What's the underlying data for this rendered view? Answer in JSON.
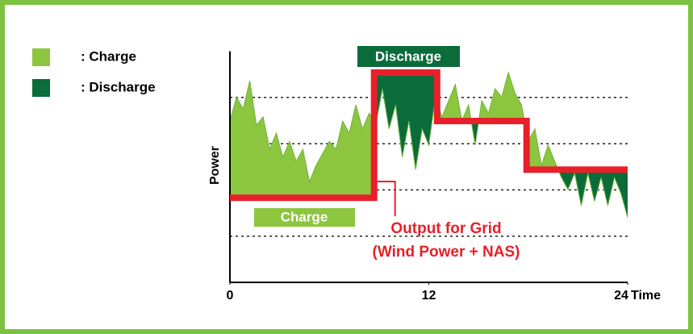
{
  "legend": [
    {
      "label": ": Charge",
      "color": "#8cc63f"
    },
    {
      "label": ": Discharge",
      "color": "#0b6b3a"
    }
  ],
  "chart_data": {
    "type": "line",
    "x_label": "Time",
    "y_label": "Power",
    "xlim": [
      0,
      24
    ],
    "xticks": [
      0,
      12,
      24
    ],
    "ylim": [
      0,
      5
    ],
    "grid_lines": [
      1,
      2,
      3,
      4
    ],
    "charge_label": "Charge",
    "discharge_label": "Discharge",
    "output_label": [
      "Output for Grid",
      "(Wind Power + NAS)"
    ],
    "wind": {
      "color": "#8cc63f",
      "x": [
        0,
        0.4,
        0.8,
        1.2,
        1.6,
        2,
        2.4,
        2.8,
        3.2,
        3.6,
        4,
        4.4,
        4.8,
        5.2,
        5.6,
        6,
        6.4,
        6.8,
        7.2,
        7.6,
        8,
        8.4,
        8.8,
        9.2,
        9.6,
        10,
        10.4,
        10.8,
        11.2,
        11.6,
        12,
        12.4,
        12.8,
        13.2,
        13.6,
        14,
        14.4,
        14.8,
        15.2,
        15.6,
        16,
        16.4,
        16.8,
        17.2,
        17.6,
        18,
        18.4,
        18.8,
        19.2,
        19.6,
        20,
        20.4,
        20.8,
        21.2,
        21.6,
        22,
        22.4,
        22.8,
        23.2,
        23.6,
        24
      ],
      "values": [
        3.49,
        4.01,
        3.75,
        4.36,
        3.4,
        3.58,
        2.88,
        3.23,
        2.71,
        3.05,
        2.62,
        2.88,
        2.18,
        2.53,
        2.79,
        3.05,
        2.88,
        3.49,
        3.23,
        3.84,
        3.32,
        3.66,
        3.4,
        4.19,
        3.32,
        3.84,
        2.71,
        3.49,
        2.44,
        3.32,
        2.97,
        4.01,
        3.58,
        3.93,
        4.28,
        3.49,
        3.84,
        2.97,
        3.93,
        3.66,
        4.19,
        4.01,
        4.54,
        4.1,
        3.84,
        3.05,
        3.32,
        2.53,
        2.97,
        2.62,
        2.27,
        2.01,
        2.36,
        1.66,
        2.36,
        1.75,
        2.27,
        1.66,
        2.27,
        1.92,
        1.4
      ]
    },
    "output": {
      "color": "#e8202a",
      "x": [
        0,
        8.7,
        8.7,
        12.5,
        12.5,
        17.9,
        17.9,
        24
      ],
      "values": [
        1.83,
        1.83,
        4.54,
        4.54,
        3.49,
        3.49,
        2.44,
        2.44
      ]
    },
    "discharge_color": "#0b6b3a"
  }
}
